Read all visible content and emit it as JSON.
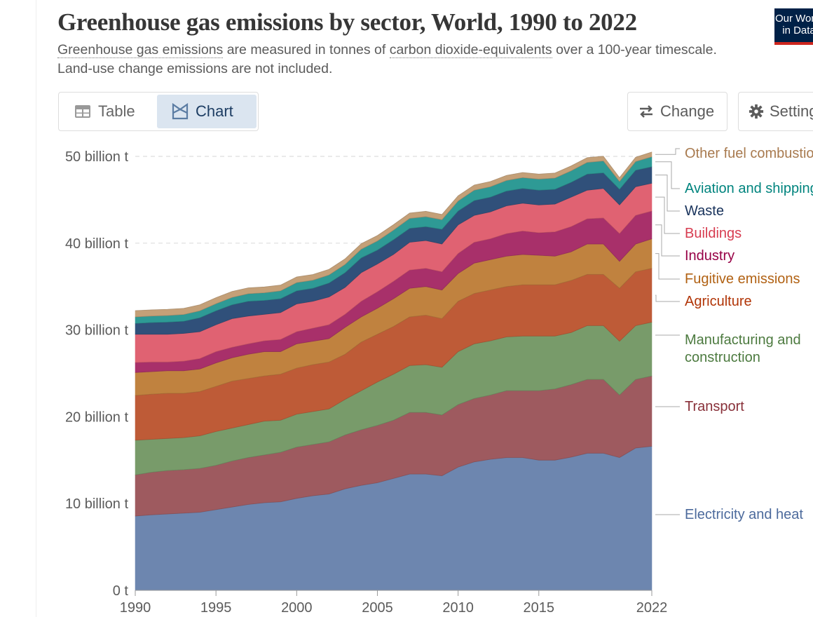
{
  "header": {
    "title": "Greenhouse gas emissions by sector, World, 1990 to 2022",
    "subtitle_link1": "Greenhouse gas emissions",
    "subtitle_mid": " are measured in tonnes of ",
    "subtitle_link2": "carbon dioxide-equivalents",
    "subtitle_end": " over a 100-year timescale. Land-use change emissions are not included.",
    "logo_line1": "Our World",
    "logo_line2": "in Data"
  },
  "toolbar": {
    "table_label": "Table",
    "chart_label": "Chart",
    "active_tab": "Chart",
    "change_label": "Change",
    "settings_label": "Settings",
    "table_icon": "table-grid-icon",
    "chart_icon": "area-chart-icon",
    "change_icon": "swap-arrows-icon",
    "settings_icon": "gear-icon"
  },
  "chart_data": {
    "type": "area",
    "stacked": true,
    "x": [
      1990,
      1991,
      1992,
      1993,
      1994,
      1995,
      1996,
      1997,
      1998,
      1999,
      2000,
      2001,
      2002,
      2003,
      2004,
      2005,
      2006,
      2007,
      2008,
      2009,
      2010,
      2011,
      2012,
      2013,
      2014,
      2015,
      2016,
      2017,
      2018,
      2019,
      2020,
      2021,
      2022
    ],
    "xticks": [
      "1990",
      "1995",
      "2000",
      "2005",
      "2010",
      "2015",
      "2022"
    ],
    "xtick_values": [
      1990,
      1995,
      2000,
      2005,
      2010,
      2015,
      2022
    ],
    "yticks": [
      "0 t",
      "10 billion t",
      "20 billion t",
      "30 billion t",
      "40 billion t",
      "50 billion t"
    ],
    "ytick_values": [
      0,
      10,
      20,
      30,
      40,
      50
    ],
    "ylim": [
      0,
      50
    ],
    "xlim": [
      1990,
      2022
    ],
    "unit": "billion t",
    "grid": "horizontal dashed",
    "legend_placement": "right (end labels)",
    "series": [
      {
        "name": "Electricity and heat",
        "color": "#6d86af",
        "label_color": "#4c6a9c",
        "values": [
          8.56,
          8.7,
          8.8,
          8.9,
          9.0,
          9.3,
          9.6,
          9.9,
          10.1,
          10.2,
          10.6,
          10.9,
          11.1,
          11.7,
          12.1,
          12.4,
          12.9,
          13.4,
          13.4,
          13.2,
          14.2,
          14.8,
          15.1,
          15.3,
          15.3,
          15.0,
          15.0,
          15.35,
          15.8,
          15.8,
          15.3,
          16.4,
          16.6
        ]
      },
      {
        "name": "Transport",
        "color": "#9e5a5f",
        "label_color": "#883039",
        "values": [
          4.74,
          4.9,
          5.0,
          5.0,
          5.05,
          5.1,
          5.3,
          5.4,
          5.5,
          5.7,
          5.9,
          5.9,
          6.0,
          6.2,
          6.4,
          6.6,
          6.7,
          7.1,
          7.1,
          7.0,
          7.2,
          7.3,
          7.4,
          7.7,
          7.7,
          8.0,
          8.2,
          8.35,
          8.5,
          8.5,
          7.2,
          7.9,
          8.1
        ]
      },
      {
        "name": "Manufacturing and construction",
        "color": "#789b6a",
        "label_color": "#4c7a3f",
        "values": [
          4.0,
          3.8,
          3.7,
          3.7,
          3.75,
          3.9,
          3.8,
          3.8,
          3.9,
          3.7,
          3.8,
          3.8,
          3.8,
          4.1,
          4.5,
          5.0,
          5.3,
          5.4,
          5.5,
          5.5,
          6.1,
          6.3,
          6.25,
          6.2,
          6.3,
          6.3,
          6.1,
          6.0,
          6.2,
          6.2,
          6.2,
          6.2,
          6.2
        ]
      },
      {
        "name": "Agriculture",
        "color": "#be5b37",
        "label_color": "#b13507",
        "values": [
          5.15,
          5.2,
          5.2,
          5.1,
          5.1,
          5.2,
          5.4,
          5.3,
          5.2,
          5.3,
          5.3,
          5.4,
          5.4,
          5.2,
          5.6,
          5.5,
          5.5,
          5.6,
          5.7,
          5.6,
          5.8,
          5.8,
          5.85,
          5.8,
          5.9,
          5.9,
          5.9,
          6.0,
          5.9,
          5.9,
          6.1,
          6.2,
          6.2
        ]
      },
      {
        "name": "Fugitive emissions",
        "color": "#c0823f",
        "label_color": "#b16214",
        "values": [
          2.65,
          2.6,
          2.6,
          2.6,
          2.6,
          2.7,
          2.7,
          2.8,
          2.8,
          2.6,
          2.8,
          2.7,
          2.7,
          3.1,
          2.9,
          3.0,
          3.2,
          3.3,
          3.3,
          3.3,
          3.2,
          3.5,
          3.5,
          3.5,
          3.5,
          3.4,
          3.3,
          3.3,
          3.5,
          3.5,
          3.1,
          3.2,
          3.4
        ]
      },
      {
        "name": "Industry",
        "color": "#a8306a",
        "label_color": "#970046",
        "values": [
          1.15,
          1.1,
          1.0,
          1.1,
          1.2,
          1.3,
          1.2,
          1.2,
          1.25,
          1.4,
          1.4,
          1.5,
          1.6,
          1.5,
          1.8,
          1.9,
          2.0,
          2.1,
          2.1,
          2.1,
          2.3,
          2.4,
          2.4,
          2.6,
          2.7,
          2.6,
          2.8,
          2.9,
          2.9,
          3.0,
          3.2,
          3.3,
          3.2
        ]
      },
      {
        "name": "Buildings",
        "color": "#e06272",
        "label_color": "#d73c50",
        "values": [
          3.25,
          3.2,
          3.2,
          3.2,
          3.1,
          3.1,
          3.3,
          3.2,
          3.05,
          3.1,
          3.2,
          3.1,
          3.2,
          3.1,
          3.3,
          3.2,
          3.1,
          3.2,
          3.2,
          3.2,
          3.3,
          3.1,
          3.1,
          3.2,
          3.2,
          3.2,
          3.2,
          3.4,
          3.3,
          3.4,
          3.3,
          3.3,
          3.2
        ]
      },
      {
        "name": "Waste",
        "color": "#30507a",
        "label_color": "#18325b",
        "values": [
          1.25,
          1.35,
          1.4,
          1.4,
          1.6,
          1.6,
          1.6,
          1.7,
          1.6,
          1.6,
          1.5,
          1.5,
          1.6,
          1.7,
          1.7,
          1.6,
          1.7,
          1.6,
          1.6,
          1.7,
          1.6,
          1.7,
          1.7,
          1.7,
          1.7,
          1.7,
          1.7,
          1.7,
          1.85,
          1.8,
          1.8,
          1.9,
          1.9
        ]
      },
      {
        "name": "Aviation and shipping",
        "color": "#2e9a95",
        "label_color": "#00847e",
        "values": [
          0.75,
          0.75,
          0.76,
          0.78,
          0.8,
          0.82,
          0.85,
          0.87,
          0.88,
          0.9,
          0.95,
          0.93,
          0.93,
          0.95,
          1.0,
          1.05,
          1.1,
          1.15,
          1.15,
          1.1,
          1.15,
          1.2,
          1.2,
          1.22,
          1.25,
          1.28,
          1.3,
          1.33,
          1.35,
          1.37,
          0.9,
          1.0,
          1.15
        ]
      },
      {
        "name": "Other fuel combustion",
        "color": "#c4a078",
        "label_color": "#a87a4f",
        "values": [
          0.73,
          0.72,
          0.72,
          0.71,
          0.7,
          0.7,
          0.69,
          0.68,
          0.68,
          0.67,
          0.66,
          0.66,
          0.65,
          0.65,
          0.64,
          0.63,
          0.63,
          0.62,
          0.62,
          0.61,
          0.61,
          0.6,
          0.6,
          0.59,
          0.59,
          0.58,
          0.58,
          0.57,
          0.56,
          0.55,
          0.45,
          0.5,
          0.55
        ]
      }
    ]
  }
}
